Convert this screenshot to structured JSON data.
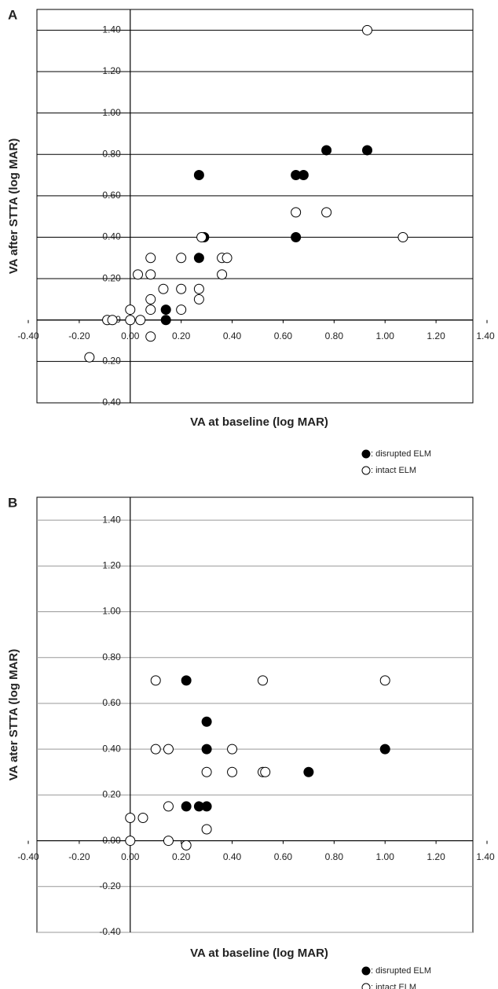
{
  "chart_data": [
    {
      "type": "scatter",
      "panel_label": "A",
      "xlabel": "VA at baseline (log MAR)",
      "ylabel": "VA after  STTA (log MAR)",
      "xlim": [
        -0.4,
        1.4
      ],
      "ylim": [
        -0.4,
        1.5
      ],
      "grid_color": "#000000",
      "xticks": [
        {
          "value": -0.4,
          "label": "-0.40"
        },
        {
          "value": -0.2,
          "label": "-0.20"
        },
        {
          "value": 0,
          "label": "0.00"
        },
        {
          "value": 0.2,
          "label": "0.20"
        },
        {
          "value": 0.4,
          "label": "0.40"
        },
        {
          "value": 0.6,
          "label": "0.60"
        },
        {
          "value": 0.8,
          "label": "0.80"
        },
        {
          "value": 1.0,
          "label": "1.00"
        },
        {
          "value": 1.2,
          "label": "1.20"
        },
        {
          "value": 1.4,
          "label": "1.40"
        }
      ],
      "yticks": [
        {
          "value": -0.4,
          "label": "-0.40"
        },
        {
          "value": -0.2,
          "label": "-0.20"
        },
        {
          "value": 0,
          "label": "0.00"
        },
        {
          "value": 0.2,
          "label": "0.20"
        },
        {
          "value": 0.4,
          "label": "0.40"
        },
        {
          "value": 0.6,
          "label": "0.60"
        },
        {
          "value": 0.8,
          "label": "0.80"
        },
        {
          "value": 1.0,
          "label": "1.00"
        },
        {
          "value": 1.2,
          "label": "1.20"
        },
        {
          "value": 1.4,
          "label": "1.40"
        }
      ],
      "series": [
        {
          "name": ": disrupted ELM",
          "color": "#000000",
          "filled": true,
          "x": [
            0.27,
            0.77,
            0.93,
            0.65,
            0.68,
            0.65,
            0.29,
            0.27,
            0.14,
            0.14
          ],
          "values": [
            0.7,
            0.82,
            0.82,
            0.7,
            0.7,
            0.4,
            0.4,
            0.3,
            0.05,
            0.0
          ]
        },
        {
          "name": ": intact ELM",
          "color": "#000000",
          "filled": false,
          "x": [
            0.93,
            0.65,
            0.77,
            1.07,
            0.28,
            0.36,
            0.38,
            0.08,
            0.2,
            0.36,
            0.03,
            0.08,
            0.13,
            0.2,
            0.27,
            0.08,
            0.27,
            0.08,
            0.2,
            0.0,
            -0.09,
            -0.07,
            0.0,
            0.04,
            0.08,
            -0.16
          ],
          "values": [
            1.4,
            0.52,
            0.52,
            0.4,
            0.4,
            0.3,
            0.3,
            0.3,
            0.3,
            0.22,
            0.22,
            0.22,
            0.15,
            0.15,
            0.15,
            0.1,
            0.1,
            0.05,
            0.05,
            0.05,
            0.0,
            0.0,
            0.0,
            0.0,
            -0.08,
            -0.18
          ]
        }
      ]
    },
    {
      "type": "scatter",
      "panel_label": "B",
      "xlabel": "VA at baseline (log MAR)",
      "ylabel": "VA ater STTA (log MAR)",
      "xlim": [
        -0.4,
        1.4
      ],
      "ylim": [
        -0.4,
        1.5
      ],
      "grid_color": "#999999",
      "xticks": [
        {
          "value": -0.4,
          "label": "-0.40"
        },
        {
          "value": -0.2,
          "label": "-0.20"
        },
        {
          "value": 0,
          "label": "0.00"
        },
        {
          "value": 0.2,
          "label": "0.20"
        },
        {
          "value": 0.4,
          "label": "0.40"
        },
        {
          "value": 0.6,
          "label": "0.60"
        },
        {
          "value": 0.8,
          "label": "0.80"
        },
        {
          "value": 1.0,
          "label": "1.00"
        },
        {
          "value": 1.2,
          "label": "1.20"
        },
        {
          "value": 1.4,
          "label": "1.40"
        }
      ],
      "yticks": [
        {
          "value": -0.4,
          "label": "-0.40"
        },
        {
          "value": -0.2,
          "label": "-0.20"
        },
        {
          "value": 0,
          "label": "0.00"
        },
        {
          "value": 0.2,
          "label": "0.20"
        },
        {
          "value": 0.4,
          "label": "0.40"
        },
        {
          "value": 0.6,
          "label": "0.60"
        },
        {
          "value": 0.8,
          "label": "0.80"
        },
        {
          "value": 1.0,
          "label": "1.00"
        },
        {
          "value": 1.2,
          "label": "1.20"
        },
        {
          "value": 1.4,
          "label": "1.40"
        }
      ],
      "series": [
        {
          "name": ": disrupted ELM",
          "color": "#000000",
          "filled": true,
          "x": [
            0.22,
            0.3,
            0.3,
            1.0,
            0.7,
            0.22,
            0.27,
            0.3
          ],
          "values": [
            0.7,
            0.52,
            0.4,
            0.4,
            0.3,
            0.15,
            0.15,
            0.15
          ]
        },
        {
          "name": ": intact ELM",
          "color": "#000000",
          "filled": false,
          "x": [
            0.1,
            0.52,
            1.0,
            0.1,
            0.15,
            0.4,
            0.3,
            0.4,
            0.52,
            0.53,
            0.15,
            0.3,
            0.0,
            0.05,
            0.0,
            0.15,
            0.22
          ],
          "values": [
            0.7,
            0.7,
            0.7,
            0.4,
            0.4,
            0.4,
            0.3,
            0.3,
            0.3,
            0.3,
            0.15,
            0.05,
            0.1,
            0.1,
            0.0,
            0.0,
            -0.02
          ]
        }
      ]
    }
  ]
}
